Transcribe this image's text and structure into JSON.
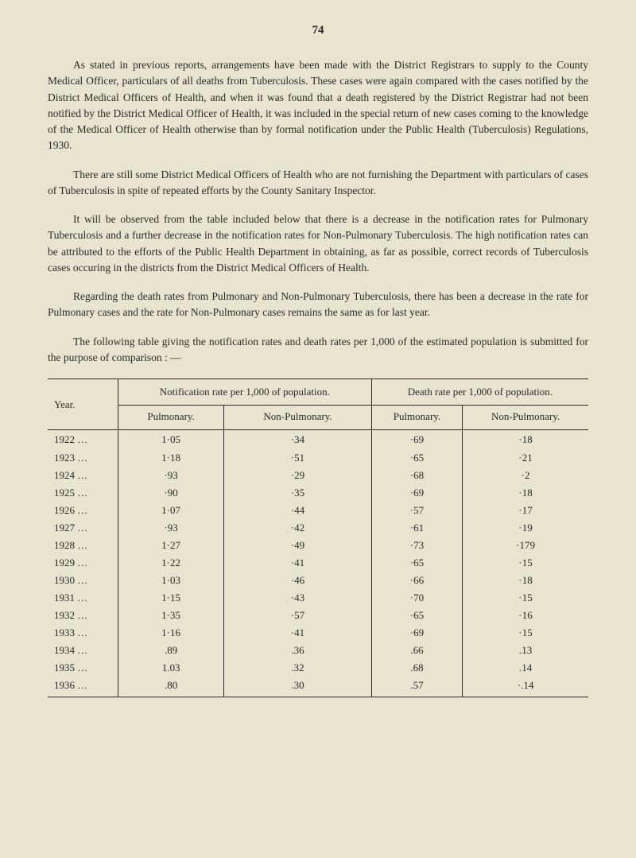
{
  "page_number": "74",
  "paragraphs": [
    "As stated in previous reports, arrangements have been made with the District Registrars to supply to the County Medical Officer, particulars of all deaths from Tuberculosis. These cases were again compared with the cases notified by the District Medical Officers of Health, and when it was found that a death registered by the District Registrar had not been notified by the District Medical Officer of Health, it was included in the special return of new cases coming to the knowledge of the Medical Officer of Health otherwise than by formal notification under the Public Health (Tuberculosis) Regulations, 1930.",
    "There are still some District Medical Officers of Health who are not furnishing the Department with particulars of cases of Tuberculosis in spite of repeated efforts by the County Sanitary Inspector.",
    "It will be observed from the table included below that there is a decrease in the notification rates for Pulmonary Tuberculosis and a further decrease in the notification rates for Non-Pulmonary Tuberculosis. The high notification rates can be attributed to the efforts of the Public Health Department in obtaining, as far as possible, correct records of Tuberculosis cases occuring in the districts from the District Medical Officers of Health.",
    "Regarding the death rates from Pulmonary and Non-Pulmonary Tuberculosis, there has been a decrease in the rate for Pulmonary cases and the rate for Non-Pulmonary cases remains the same as for last year.",
    "The following table giving the notification rates and death rates per 1,000 of the estimated population is submitted for the purpose of comparison : —"
  ],
  "table": {
    "header_year": "Year.",
    "header_notif": "Notification rate per 1,000 of population.",
    "header_death": "Death rate per 1,000 of population.",
    "sub_pulm": "Pulmonary.",
    "sub_nonpulm": "Non-Pulmonary.",
    "rows": [
      {
        "year": "1922",
        "notif_pulm": "1·05",
        "notif_nonpulm": "·34",
        "death_pulm": "·69",
        "death_nonpulm": "·18"
      },
      {
        "year": "1923",
        "notif_pulm": "1·18",
        "notif_nonpulm": "·51",
        "death_pulm": "·65",
        "death_nonpulm": "·21"
      },
      {
        "year": "1924",
        "notif_pulm": "·93",
        "notif_nonpulm": "·29",
        "death_pulm": "·68",
        "death_nonpulm": "·2"
      },
      {
        "year": "1925",
        "notif_pulm": "·90",
        "notif_nonpulm": "·35",
        "death_pulm": "·69",
        "death_nonpulm": "·18"
      },
      {
        "year": "1926",
        "notif_pulm": "1·07",
        "notif_nonpulm": "·44",
        "death_pulm": "·57",
        "death_nonpulm": "·17"
      },
      {
        "year": "1927",
        "notif_pulm": "·93",
        "notif_nonpulm": "·42",
        "death_pulm": "·61",
        "death_nonpulm": "·19"
      },
      {
        "year": "1928",
        "notif_pulm": "1·27",
        "notif_nonpulm": "·49",
        "death_pulm": "·73",
        "death_nonpulm": "·179"
      },
      {
        "year": "1929",
        "notif_pulm": "1·22",
        "notif_nonpulm": "·41",
        "death_pulm": "·65",
        "death_nonpulm": "·15"
      },
      {
        "year": "1930",
        "notif_pulm": "1·03",
        "notif_nonpulm": "·46",
        "death_pulm": "·66",
        "death_nonpulm": "·18"
      },
      {
        "year": "1931",
        "notif_pulm": "1·15",
        "notif_nonpulm": "·43",
        "death_pulm": "·70",
        "death_nonpulm": "·15"
      },
      {
        "year": "1932",
        "notif_pulm": "1·35",
        "notif_nonpulm": "·57",
        "death_pulm": "·65",
        "death_nonpulm": "·16"
      },
      {
        "year": "1933",
        "notif_pulm": "1·16",
        "notif_nonpulm": "·41",
        "death_pulm": "·69",
        "death_nonpulm": "·15"
      },
      {
        "year": "1934",
        "notif_pulm": ".89",
        "notif_nonpulm": ".36",
        "death_pulm": ".66",
        "death_nonpulm": ".13"
      },
      {
        "year": "1935",
        "notif_pulm": "1.03",
        "notif_nonpulm": ".32",
        "death_pulm": ".68",
        "death_nonpulm": ".14"
      },
      {
        "year": "1936",
        "notif_pulm": ".80",
        "notif_nonpulm": ".30",
        "death_pulm": ".57",
        "death_nonpulm": "·.14"
      }
    ],
    "col_widths": [
      "13%",
      "21%",
      "22%",
      "21%",
      "23%"
    ]
  },
  "colors": {
    "background": "#e8e4d0",
    "text": "#2a2a2a",
    "rule": "#2a2a2a"
  }
}
